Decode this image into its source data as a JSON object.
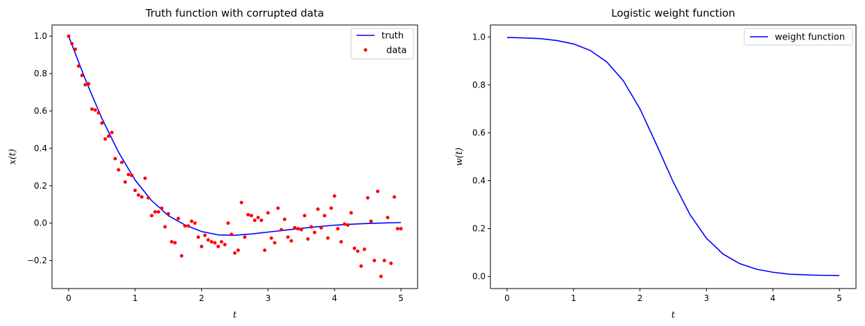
{
  "chart_data": [
    {
      "type": "line",
      "title": "Truth function with corrupted data",
      "xlabel": "t",
      "ylabel": "x(t)",
      "xlim": [
        -0.25,
        5.25
      ],
      "ylim": [
        -0.35,
        1.06
      ],
      "xticks": [
        0,
        1,
        2,
        3,
        4,
        5
      ],
      "xtick_labels": [
        "0",
        "1",
        "2",
        "3",
        "4",
        "5"
      ],
      "yticks": [
        -0.2,
        0.0,
        0.2,
        0.4,
        0.6,
        0.8,
        1.0
      ],
      "ytick_labels": [
        "−0.2",
        "0.0",
        "0.2",
        "0.4",
        "0.6",
        "0.8",
        "1.0"
      ],
      "grid": false,
      "legend": "top-right",
      "colors": {
        "truth": "#0000ff",
        "data": "#ff0000"
      },
      "series": [
        {
          "name": "truth",
          "kind": "line",
          "x": [
            0,
            0.25,
            0.5,
            0.75,
            1.0,
            1.25,
            1.5,
            1.75,
            2.0,
            2.25,
            2.5,
            2.75,
            3.0,
            3.25,
            3.5,
            3.75,
            4.0,
            4.25,
            4.5,
            4.75,
            5.0
          ],
          "y": [
            1.0,
            0.77,
            0.56,
            0.38,
            0.23,
            0.12,
            0.04,
            -0.01,
            -0.045,
            -0.063,
            -0.065,
            -0.058,
            -0.048,
            -0.038,
            -0.028,
            -0.019,
            -0.011,
            -0.006,
            -0.002,
            0.001,
            0.003
          ]
        },
        {
          "name": "data",
          "kind": "scatter",
          "x": [
            0.0,
            0.05,
            0.1,
            0.15,
            0.2,
            0.25,
            0.3,
            0.35,
            0.4,
            0.45,
            0.5,
            0.55,
            0.6,
            0.65,
            0.7,
            0.75,
            0.8,
            0.85,
            0.9,
            0.95,
            1.0,
            1.05,
            1.1,
            1.15,
            1.2,
            1.25,
            1.3,
            1.35,
            1.4,
            1.45,
            1.5,
            1.55,
            1.6,
            1.65,
            1.7,
            1.75,
            1.8,
            1.85,
            1.9,
            1.95,
            2.0,
            2.05,
            2.1,
            2.15,
            2.2,
            2.25,
            2.3,
            2.35,
            2.4,
            2.45,
            2.5,
            2.55,
            2.6,
            2.65,
            2.7,
            2.75,
            2.8,
            2.85,
            2.9,
            2.95,
            3.0,
            3.05,
            3.1,
            3.15,
            3.2,
            3.25,
            3.3,
            3.35,
            3.4,
            3.45,
            3.5,
            3.55,
            3.6,
            3.65,
            3.7,
            3.75,
            3.8,
            3.85,
            3.9,
            3.95,
            4.0,
            4.05,
            4.1,
            4.15,
            4.2,
            4.25,
            4.3,
            4.35,
            4.4,
            4.45,
            4.5,
            4.55,
            4.6,
            4.65,
            4.7,
            4.75,
            4.8,
            4.85,
            4.9,
            4.95,
            5.0
          ],
          "y": [
            1.0,
            0.96,
            0.93,
            0.84,
            0.79,
            0.74,
            0.745,
            0.61,
            0.605,
            0.59,
            0.535,
            0.45,
            0.465,
            0.485,
            0.345,
            0.285,
            0.325,
            0.22,
            0.26,
            0.255,
            0.175,
            0.15,
            0.14,
            0.24,
            0.135,
            0.04,
            0.06,
            0.06,
            0.08,
            -0.02,
            0.05,
            -0.1,
            -0.105,
            0.025,
            -0.175,
            -0.015,
            -0.015,
            0.01,
            0.0,
            -0.075,
            -0.125,
            -0.065,
            -0.09,
            -0.1,
            -0.105,
            -0.125,
            -0.1,
            -0.115,
            0.0,
            -0.06,
            -0.16,
            -0.145,
            0.11,
            -0.075,
            0.045,
            0.04,
            0.015,
            0.03,
            0.015,
            -0.145,
            0.055,
            -0.08,
            -0.105,
            0.08,
            -0.035,
            0.02,
            -0.075,
            -0.095,
            -0.025,
            -0.03,
            -0.035,
            0.04,
            -0.085,
            -0.02,
            -0.05,
            0.075,
            -0.025,
            0.04,
            -0.08,
            0.08,
            0.145,
            -0.03,
            -0.1,
            -0.005,
            -0.01,
            0.055,
            -0.135,
            -0.15,
            -0.23,
            -0.14,
            0.135,
            0.01,
            -0.2,
            0.17,
            -0.285,
            -0.2,
            0.03,
            -0.215,
            0.14,
            -0.03,
            -0.03
          ]
        }
      ]
    },
    {
      "type": "line",
      "title": "Logistic weight function",
      "xlabel": "t",
      "ylabel": "w(t)",
      "xlim": [
        -0.25,
        5.25
      ],
      "ylim": [
        -0.05,
        1.05
      ],
      "xticks": [
        0,
        1,
        2,
        3,
        4,
        5
      ],
      "xtick_labels": [
        "0",
        "1",
        "2",
        "3",
        "4",
        "5"
      ],
      "yticks": [
        0.0,
        0.2,
        0.4,
        0.6,
        0.8,
        1.0
      ],
      "ytick_labels": [
        "0.0",
        "0.2",
        "0.4",
        "0.6",
        "0.8",
        "1.0"
      ],
      "grid": false,
      "legend": "top-right",
      "colors": {
        "weight function": "#0000ff"
      },
      "series": [
        {
          "name": "weight function",
          "kind": "line",
          "x": [
            0,
            0.25,
            0.5,
            0.75,
            1.0,
            1.25,
            1.5,
            1.75,
            2.0,
            2.25,
            2.5,
            2.75,
            3.0,
            3.25,
            3.5,
            3.75,
            4.0,
            4.25,
            4.5,
            4.75,
            5.0
          ],
          "y": [
            0.998,
            0.996,
            0.993,
            0.985,
            0.971,
            0.944,
            0.896,
            0.817,
            0.7,
            0.55,
            0.395,
            0.26,
            0.16,
            0.094,
            0.054,
            0.031,
            0.018,
            0.01,
            0.007,
            0.005,
            0.004
          ]
        }
      ]
    }
  ]
}
